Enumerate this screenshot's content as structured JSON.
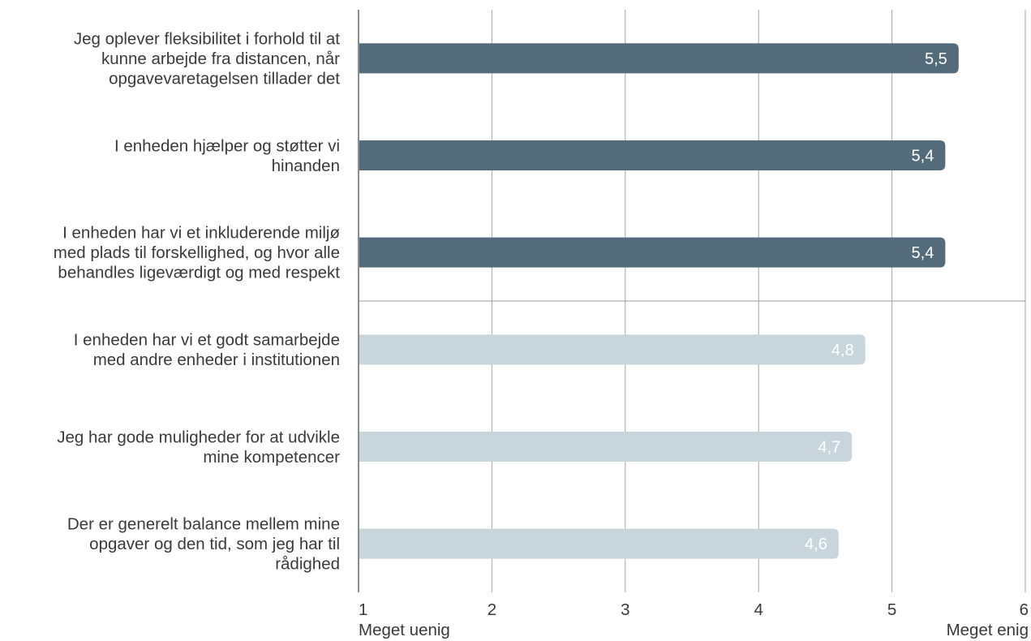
{
  "chart_data": {
    "type": "bar",
    "orientation": "horizontal",
    "categories": [
      [
        "Jeg oplever fleksibilitet i forhold til at",
        "kunne arbejde fra distancen, når",
        "opgavevaretagelsen tillader det"
      ],
      [
        "I enheden hjælper og støtter vi",
        "hinanden"
      ],
      [
        "I enheden  har vi et inkluderende miljø",
        "med plads til forskellighed, og hvor alle",
        "behandles ligeværdigt og med respekt"
      ],
      [
        "I enheden har vi et godt samarbejde",
        "med andre enheder i institutionen"
      ],
      [
        "Jeg har gode muligheder for at udvikle",
        "mine kompetencer"
      ],
      [
        "Der er generelt balance mellem mine",
        "opgaver og den tid, som jeg har til",
        "rådighed"
      ]
    ],
    "values": [
      5.5,
      5.4,
      5.4,
      4.8,
      4.7,
      4.6
    ],
    "data_labels": [
      "5,5",
      "5,4",
      "5,4",
      "4,8",
      "4,7",
      "4,6"
    ],
    "bar_groups": [
      "top",
      "top",
      "top",
      "bottom",
      "bottom",
      "bottom"
    ],
    "colors": {
      "top": "#546b7b",
      "bottom": "#c9d5dc",
      "grid": "#a6a6a6",
      "axis": "#8c8c8c",
      "separator": "#9a9a9a",
      "text": "#3a3a3a"
    },
    "xlim": [
      1,
      6
    ],
    "xticks": [
      1,
      2,
      3,
      4,
      5,
      6
    ],
    "xtick_labels": [
      "1",
      "2",
      "3",
      "4",
      "5",
      "6"
    ],
    "x_end_labels": {
      "min": "Meget uenig",
      "max": "Meget enig"
    },
    "title": "",
    "xlabel": "",
    "ylabel": "",
    "grid": true,
    "legend": "none"
  }
}
